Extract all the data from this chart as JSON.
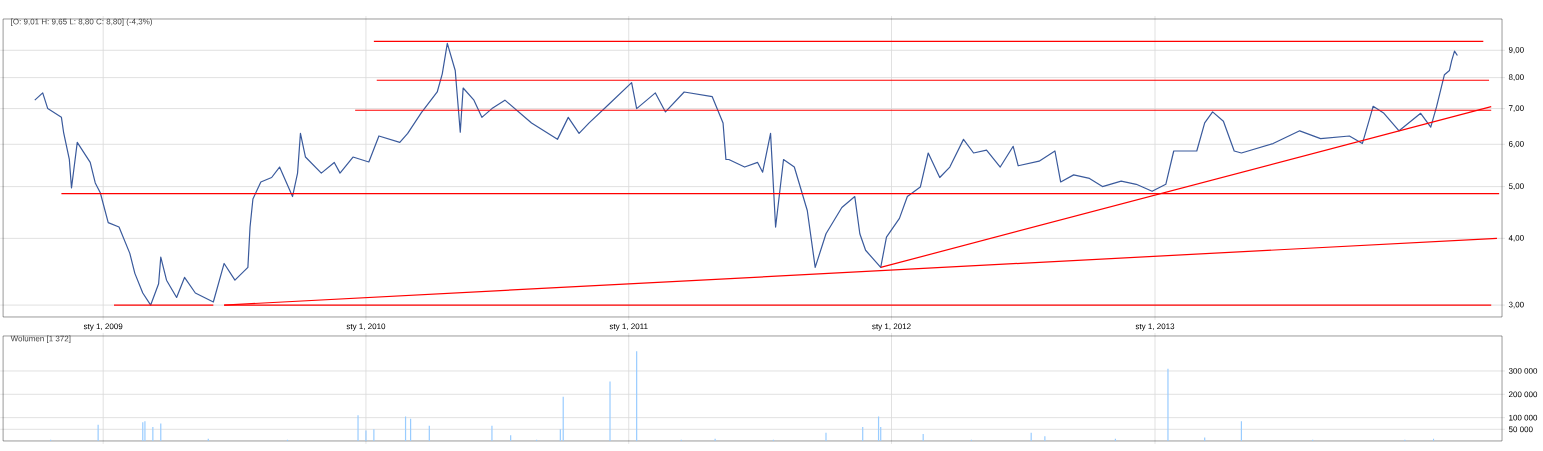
{
  "chart_data": [
    {
      "type": "line",
      "title": "[O: 9,01  H: 9,65  L: 8,80  C: 8,80] (-4,3%)",
      "xlim": [
        "2008-08-15",
        "2014-04-28"
      ],
      "ylim": [
        2.85,
        10.3
      ],
      "log": "y",
      "grid": true,
      "marker": "none",
      "xticks": [
        {
          "value": "2009-01-01",
          "label": "sty 1, 2009"
        },
        {
          "value": "2010-01-01",
          "label": "sty 1, 2010"
        },
        {
          "value": "2011-01-01",
          "label": "sty 1, 2011"
        },
        {
          "value": "2012-01-01",
          "label": "sty 1, 2012"
        },
        {
          "value": "2013-01-01",
          "label": "sty 1, 2013"
        }
      ],
      "yticks": [
        {
          "value": 3,
          "label": "3,00"
        },
        {
          "value": 4,
          "label": "4,00"
        },
        {
          "value": 5,
          "label": "5,00"
        },
        {
          "value": 6,
          "label": "6,00"
        },
        {
          "value": 7,
          "label": "7,00"
        },
        {
          "value": 8,
          "label": "8,00"
        },
        {
          "value": 9,
          "label": "9,00"
        }
      ],
      "series": [
        {
          "color": "#3a5a9c",
          "x": [
            "2008-09-28",
            "2008-10-09",
            "2008-10-16",
            "2008-11-04",
            "2008-11-07",
            "2008-11-15",
            "2008-11-18",
            "2008-11-26",
            "2008-12-14",
            "2008-12-21",
            "2008-12-28",
            "2009-01-08",
            "2009-01-23",
            "2009-02-07",
            "2009-02-14",
            "2009-02-25",
            "2009-03-08",
            "2009-03-19",
            "2009-03-22",
            "2009-03-30",
            "2009-04-13",
            "2009-04-24",
            "2009-05-09",
            "2009-06-03",
            "2009-06-18",
            "2009-07-03",
            "2009-07-21",
            "2009-07-24",
            "2009-07-28",
            "2009-08-08",
            "2009-08-23",
            "2009-09-03",
            "2009-09-21",
            "2009-09-28",
            "2009-10-02",
            "2009-10-09",
            "2009-10-31",
            "2009-11-18",
            "2009-11-26",
            "2009-12-14",
            "2010-01-05",
            "2010-01-19",
            "2010-02-17",
            "2010-02-28",
            "2010-03-19",
            "2010-04-10",
            "2010-04-17",
            "2010-04-24",
            "2010-05-05",
            "2010-05-12",
            "2010-05-16",
            "2010-05-31",
            "2010-06-11",
            "2010-06-25",
            "2010-07-13",
            "2010-08-19",
            "2010-09-24",
            "2010-10-09",
            "2010-10-24",
            "2010-11-07",
            "2010-12-03",
            "2011-01-05",
            "2011-01-12",
            "2011-02-07",
            "2011-02-21",
            "2011-03-19",
            "2011-04-27",
            "2011-05-12",
            "2011-05-16",
            "2011-05-20",
            "2011-06-11",
            "2011-06-29",
            "2011-07-06",
            "2011-07-17",
            "2011-07-24",
            "2011-08-04",
            "2011-08-19",
            "2011-09-06",
            "2011-09-17",
            "2011-10-02",
            "2011-10-24",
            "2011-11-11",
            "2011-11-18",
            "2011-11-26",
            "2011-12-17",
            "2011-12-25",
            "2012-01-12",
            "2012-01-23",
            "2012-02-10",
            "2012-02-21",
            "2012-03-08",
            "2012-03-22",
            "2012-04-10",
            "2012-04-24",
            "2012-05-12",
            "2012-05-31",
            "2012-06-18",
            "2012-06-25",
            "2012-07-24",
            "2012-08-15",
            "2012-08-23",
            "2012-09-10",
            "2012-10-02",
            "2012-10-20",
            "2012-11-15",
            "2012-12-06",
            "2012-12-28",
            "2013-01-16",
            "2013-01-27",
            "2013-02-28",
            "2013-03-11",
            "2013-03-22",
            "2013-04-06",
            "2013-04-21",
            "2013-05-01",
            "2013-06-14",
            "2013-07-21",
            "2013-08-19",
            "2013-09-28",
            "2013-10-16",
            "2013-10-27",
            "2013-10-31",
            "2013-11-15",
            "2013-12-06",
            "2014-01-05",
            "2014-01-19",
            "2014-01-27",
            "2014-02-07",
            "2014-02-14",
            "2014-02-17",
            "2014-02-21",
            "2014-02-25"
          ],
          "values": [
            7.26,
            7.49,
            7.0,
            6.74,
            6.32,
            5.62,
            4.97,
            6.05,
            5.55,
            5.08,
            4.87,
            4.28,
            4.2,
            3.75,
            3.44,
            3.16,
            3.0,
            3.29,
            3.69,
            3.34,
            3.1,
            3.38,
            3.16,
            3.04,
            3.59,
            3.34,
            3.53,
            4.2,
            4.74,
            5.1,
            5.2,
            5.44,
            4.79,
            5.3,
            6.29,
            5.68,
            5.3,
            5.55,
            5.3,
            5.68,
            5.56,
            6.22,
            6.05,
            6.29,
            6.88,
            7.52,
            8.13,
            9.27,
            8.25,
            6.32,
            7.65,
            7.26,
            6.74,
            7.0,
            7.26,
            6.58,
            6.13,
            6.74,
            6.29,
            6.58,
            7.1,
            7.83,
            7.0,
            7.49,
            6.9,
            7.52,
            7.37,
            6.58,
            5.62,
            5.62,
            5.44,
            5.55,
            5.32,
            6.29,
            4.2,
            5.62,
            5.44,
            4.51,
            3.53,
            4.08,
            4.57,
            4.79,
            4.08,
            3.8,
            3.53,
            4.02,
            4.36,
            4.79,
            4.99,
            5.78,
            5.2,
            5.44,
            6.13,
            5.78,
            5.85,
            5.44,
            5.95,
            5.47,
            5.58,
            5.83,
            5.1,
            5.26,
            5.18,
            5.0,
            5.12,
            5.05,
            4.9,
            5.05,
            5.83,
            5.83,
            6.58,
            6.9,
            6.63,
            5.83,
            5.78,
            6.02,
            6.36,
            6.15,
            6.22,
            6.02,
            6.77,
            7.07,
            6.86,
            6.36,
            6.86,
            6.46,
            7.05,
            8.1,
            8.25,
            8.6,
            8.97,
            8.8
          ]
        },
        {
          "type": "line",
          "color": "#ff0000",
          "x": [
            "2010-01-12",
            "2014-04-02"
          ],
          "values": [
            9.35,
            9.35
          ]
        },
        {
          "type": "line",
          "color": "#ff0000",
          "x": [
            "2010-01-16",
            "2014-04-10"
          ],
          "values": [
            7.91,
            7.91
          ]
        },
        {
          "type": "line",
          "color": "#ff0000",
          "x": [
            "2009-12-17",
            "2014-04-13"
          ],
          "values": [
            6.95,
            6.95
          ]
        },
        {
          "type": "line",
          "color": "#ff0000",
          "x": [
            "2008-11-04",
            "2014-04-24"
          ],
          "values": [
            4.85,
            4.85
          ]
        },
        {
          "type": "line",
          "color": "#ff0000",
          "x": [
            "2009-01-16",
            "2009-06-03"
          ],
          "values": [
            3.0,
            3.0
          ]
        },
        {
          "type": "line",
          "color": "#ff0000",
          "x": [
            "2009-06-18",
            "2014-04-13"
          ],
          "values": [
            3.0,
            3.0
          ]
        },
        {
          "type": "line",
          "color": "#ff0000",
          "x": [
            "2009-06-18",
            "2014-04-21"
          ],
          "values": [
            3.0,
            4.0
          ]
        },
        {
          "type": "line",
          "color": "#ff0000",
          "x": [
            "2011-12-17",
            "2014-04-13"
          ],
          "values": [
            3.53,
            7.06
          ]
        }
      ]
    },
    {
      "type": "bar",
      "title": "Wolumen [1 372]",
      "color": "#99ccff",
      "xlim": [
        "2008-08-15",
        "2014-04-28"
      ],
      "ylim": [
        0,
        450000
      ],
      "grid": true,
      "tick_labels": "y",
      "xticks": [
        {
          "value": "2009-01-01",
          "label": null
        },
        {
          "value": "2010-01-01",
          "label": null
        },
        {
          "value": "2011-01-01",
          "label": null
        },
        {
          "value": "2012-01-01",
          "label": null
        },
        {
          "value": "2013-01-01",
          "label": null
        }
      ],
      "yticks": [
        {
          "value": 50000,
          "label": "50 000"
        },
        {
          "value": 100000,
          "label": "100 000"
        },
        {
          "value": 200000,
          "label": "200 000"
        },
        {
          "value": 300000,
          "label": "300 000"
        }
      ],
      "x": [
        "2008-10-20",
        "2008-12-25",
        "2009-02-25",
        "2009-02-28",
        "2009-03-11",
        "2009-03-22",
        "2009-05-27",
        "2009-09-14",
        "2009-12-21",
        "2010-01-01",
        "2010-01-12",
        "2010-02-25",
        "2010-03-04",
        "2010-03-30",
        "2010-06-25",
        "2010-07-21",
        "2010-08-26",
        "2010-09-28",
        "2010-10-02",
        "2010-12-06",
        "2011-01-12",
        "2011-03-15",
        "2011-05-01",
        "2011-07-21",
        "2011-10-02",
        "2011-11-22",
        "2011-12-14",
        "2011-12-17",
        "2012-02-14",
        "2012-04-21",
        "2012-07-13",
        "2012-08-01",
        "2012-11-07",
        "2013-01-19",
        "2013-03-11",
        "2013-05-01",
        "2013-08-08",
        "2013-12-14",
        "2014-01-23"
      ],
      "values": [
        5000,
        70000,
        80000,
        85000,
        60000,
        75000,
        10000,
        5000,
        110000,
        45000,
        50000,
        105000,
        95000,
        65000,
        65000,
        25000,
        5000,
        50000,
        190000,
        255000,
        385000,
        5000,
        10000,
        5000,
        35000,
        60000,
        105000,
        60000,
        30000,
        5000,
        35000,
        20000,
        10000,
        310000,
        15000,
        85000,
        5000,
        5000,
        10000
      ]
    }
  ]
}
